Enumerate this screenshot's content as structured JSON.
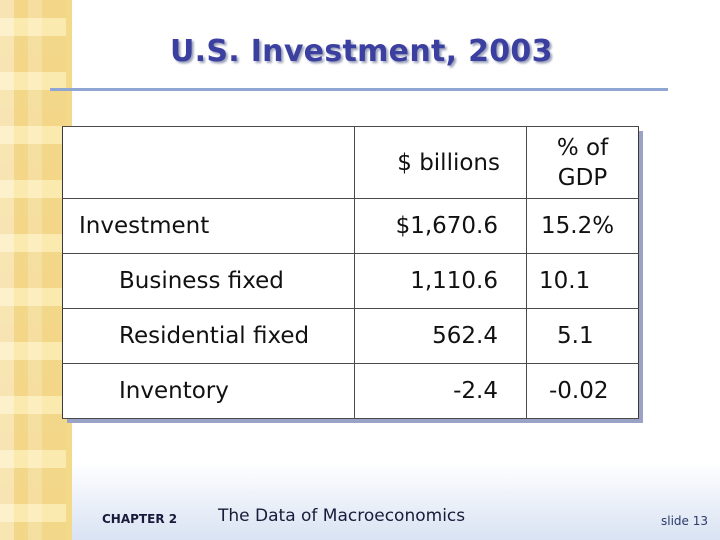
{
  "slide": {
    "title": "U.S. Investment, 2003"
  },
  "table": {
    "headers": {
      "category": "",
      "amount": "$ billions",
      "percent_line1": "% of",
      "percent_line2": "GDP"
    },
    "rows": [
      {
        "label": "Investment",
        "amount": "$1,670.6",
        "percent": "15.2%"
      },
      {
        "label": "Business fixed",
        "amount": "1,110.6",
        "percent": "10.1"
      },
      {
        "label": "Residential fixed",
        "amount": "562.4",
        "percent": "5.1"
      },
      {
        "label": "Inventory",
        "amount": "-2.4",
        "percent": "-0.02"
      }
    ]
  },
  "footer": {
    "chapter_label": "CHAPTER 2",
    "chapter_title": "The Data of Macroeconomics",
    "slide_number": "slide 13"
  },
  "colors": {
    "title": "#3b3f9f",
    "rule": "#8fa6d2",
    "strip": "#f9e7a8",
    "footer_gradient": "#d9e3f3"
  }
}
